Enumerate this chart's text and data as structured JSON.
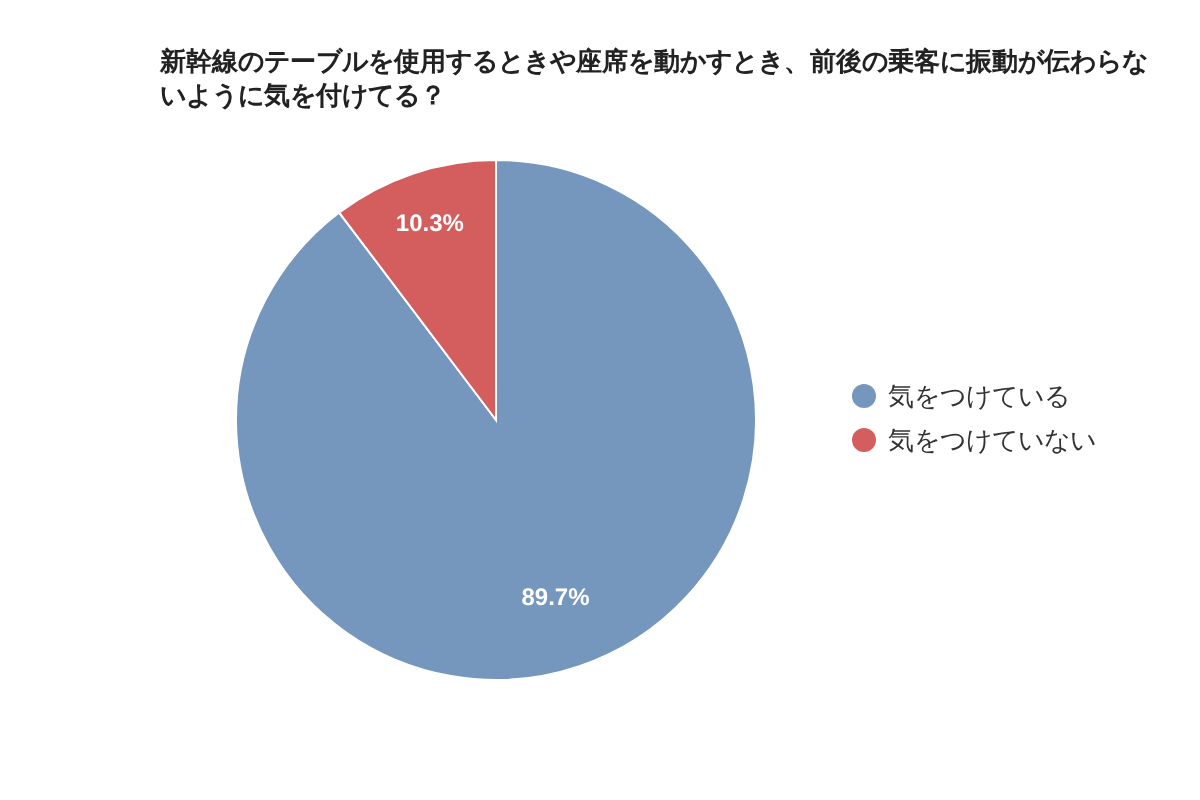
{
  "chart_data": {
    "type": "pie",
    "title": "新幹線のテーブルを使用するときや座席を動かすとき、前後の乗客に振動が伝わらないように気を付けてる？",
    "categories": [
      "気をつけている",
      "気をつけていない"
    ],
    "values": [
      89.7,
      10.3
    ],
    "value_labels": [
      "89.7%",
      "10.3%"
    ],
    "colors": [
      "#7596bd",
      "#d45d5d"
    ],
    "legend": "right"
  }
}
